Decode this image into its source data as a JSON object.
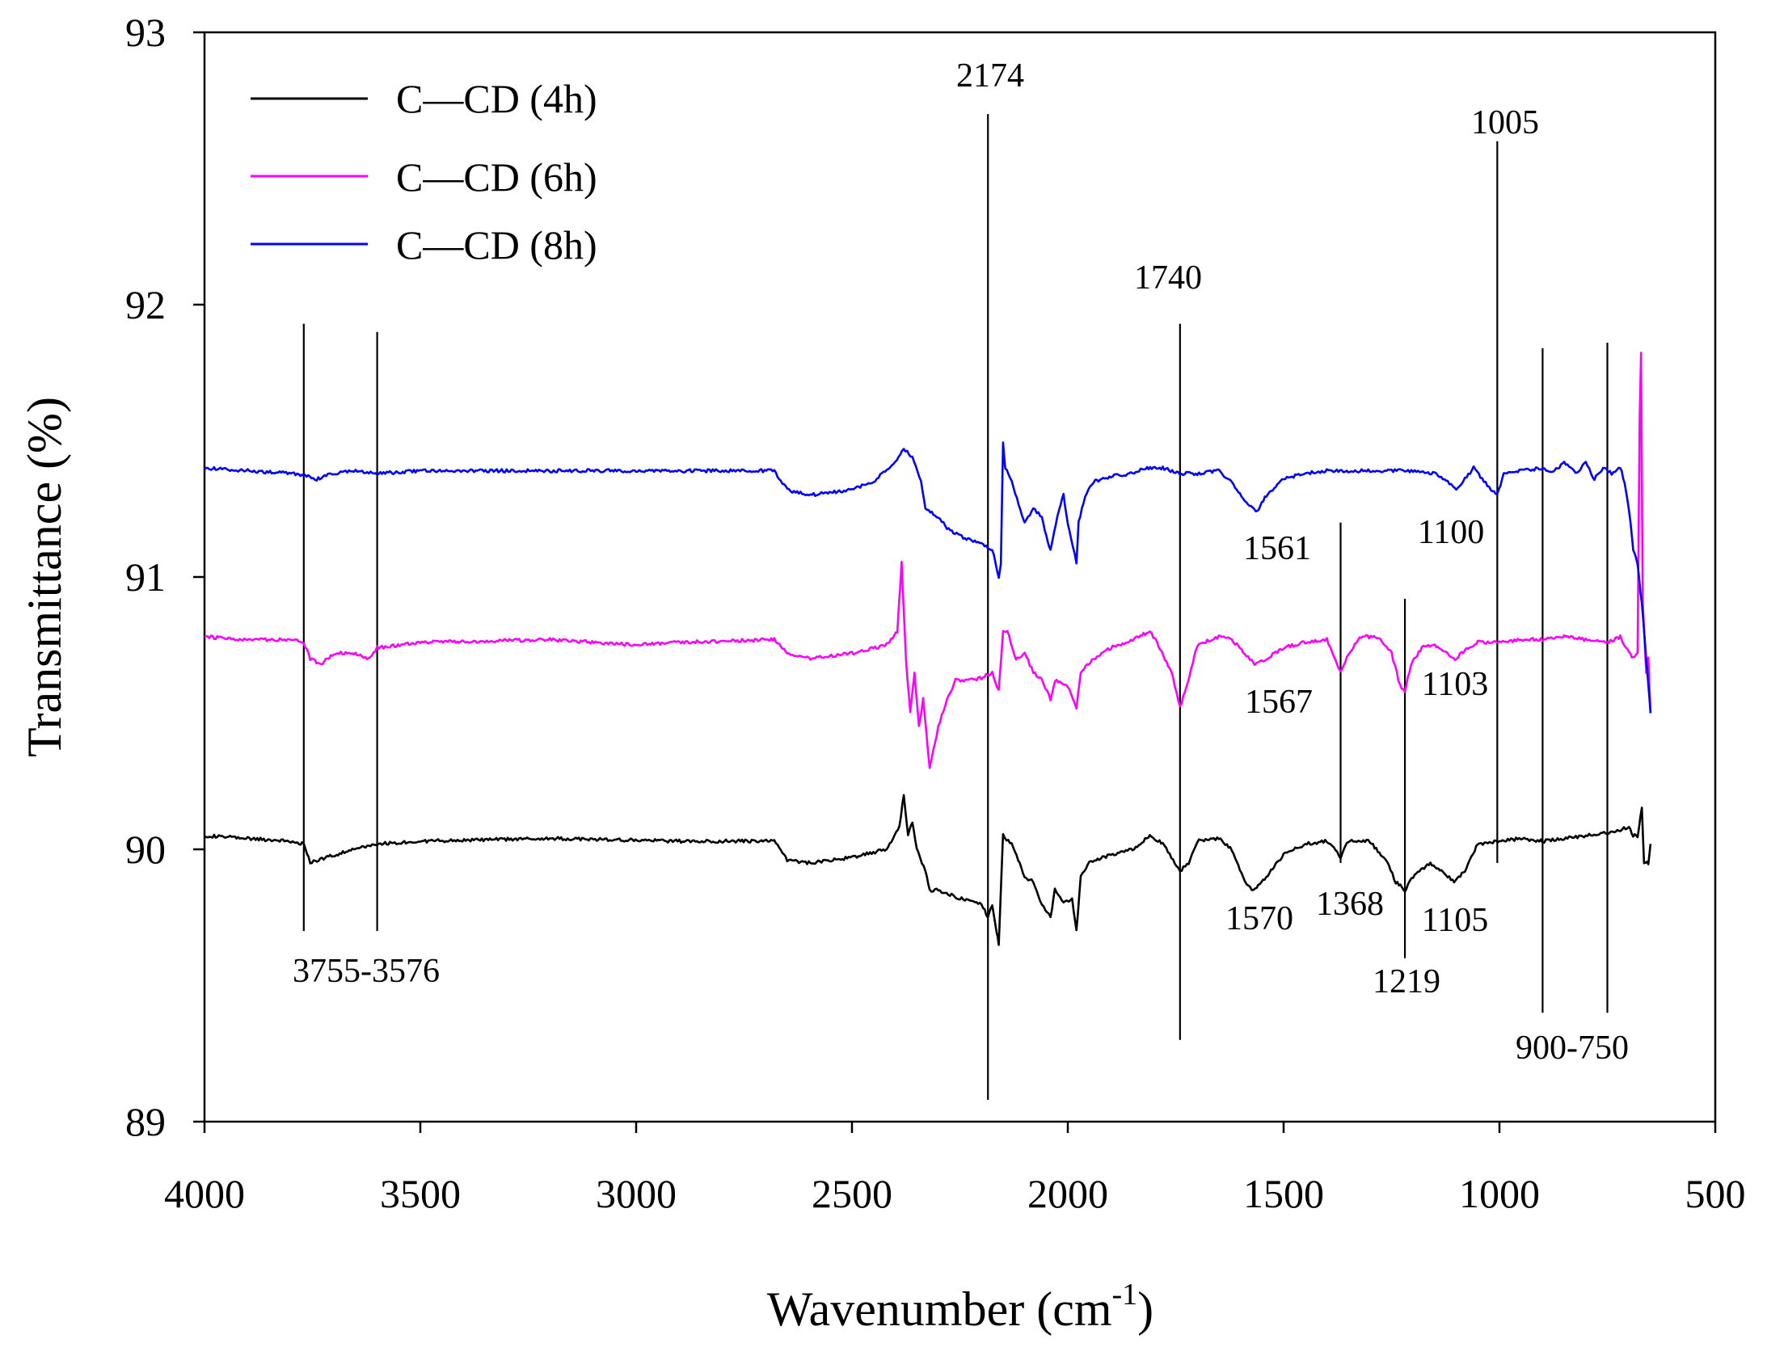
{
  "chart_data": {
    "type": "line",
    "title": "",
    "xlabel": "Wavenumber (cm",
    "xlabel_sup": "-1",
    "xlabel_close": ")",
    "ylabel": "Transmittance (%)",
    "xlim": [
      4000,
      500
    ],
    "ylim": [
      89,
      93
    ],
    "xticks": [
      4000,
      3500,
      3000,
      2500,
      2000,
      1500,
      1000,
      500
    ],
    "yticks": [
      89,
      90,
      91,
      92,
      93
    ],
    "legend_position": "top-left",
    "series": [
      {
        "name": "C—CD (4h)",
        "color": "#000000",
        "points": [
          [
            4000,
            90.05
          ],
          [
            3900,
            90.04
          ],
          [
            3800,
            90.03
          ],
          [
            3770,
            90.02
          ],
          [
            3755,
            89.95
          ],
          [
            3720,
            89.97
          ],
          [
            3650,
            90.0
          ],
          [
            3600,
            90.02
          ],
          [
            3500,
            90.03
          ],
          [
            3200,
            90.04
          ],
          [
            2900,
            90.03
          ],
          [
            2680,
            90.03
          ],
          [
            2650,
            89.96
          ],
          [
            2600,
            89.95
          ],
          [
            2500,
            89.97
          ],
          [
            2420,
            90.0
          ],
          [
            2390,
            90.08
          ],
          [
            2380,
            90.2
          ],
          [
            2370,
            90.05
          ],
          [
            2360,
            90.1
          ],
          [
            2350,
            90.0
          ],
          [
            2330,
            89.92
          ],
          [
            2320,
            89.85
          ],
          [
            2300,
            89.85
          ],
          [
            2250,
            89.82
          ],
          [
            2200,
            89.8
          ],
          [
            2185,
            89.75
          ],
          [
            2175,
            89.8
          ],
          [
            2165,
            89.7
          ],
          [
            2160,
            89.65
          ],
          [
            2150,
            90.05
          ],
          [
            2130,
            90.02
          ],
          [
            2100,
            89.9
          ],
          [
            2080,
            89.88
          ],
          [
            2060,
            89.8
          ],
          [
            2040,
            89.75
          ],
          [
            2030,
            89.85
          ],
          [
            2010,
            89.8
          ],
          [
            1990,
            89.82
          ],
          [
            1980,
            89.7
          ],
          [
            1970,
            89.9
          ],
          [
            1950,
            89.95
          ],
          [
            1900,
            89.98
          ],
          [
            1850,
            90.0
          ],
          [
            1810,
            90.05
          ],
          [
            1780,
            90.02
          ],
          [
            1760,
            89.97
          ],
          [
            1740,
            89.92
          ],
          [
            1720,
            89.95
          ],
          [
            1700,
            90.03
          ],
          [
            1650,
            90.04
          ],
          [
            1620,
            90.0
          ],
          [
            1590,
            89.88
          ],
          [
            1570,
            89.85
          ],
          [
            1540,
            89.9
          ],
          [
            1500,
            89.98
          ],
          [
            1450,
            90.02
          ],
          [
            1400,
            90.03
          ],
          [
            1380,
            90.0
          ],
          [
            1368,
            89.97
          ],
          [
            1350,
            90.03
          ],
          [
            1300,
            90.03
          ],
          [
            1260,
            89.95
          ],
          [
            1240,
            89.88
          ],
          [
            1219,
            89.85
          ],
          [
            1200,
            89.9
          ],
          [
            1160,
            89.95
          ],
          [
            1120,
            89.9
          ],
          [
            1105,
            89.88
          ],
          [
            1080,
            89.92
          ],
          [
            1050,
            90.02
          ],
          [
            1000,
            90.03
          ],
          [
            950,
            90.04
          ],
          [
            900,
            90.03
          ],
          [
            850,
            90.04
          ],
          [
            800,
            90.05
          ],
          [
            750,
            90.06
          ],
          [
            700,
            90.08
          ],
          [
            690,
            90.05
          ],
          [
            680,
            90.05
          ],
          [
            670,
            90.15
          ],
          [
            665,
            89.95
          ],
          [
            655,
            89.95
          ],
          [
            650,
            90.02
          ]
        ]
      },
      {
        "name": "C—CD (6h)",
        "color": "#ff00ff",
        "points": [
          [
            4000,
            90.78
          ],
          [
            3900,
            90.77
          ],
          [
            3800,
            90.77
          ],
          [
            3770,
            90.76
          ],
          [
            3755,
            90.7
          ],
          [
            3730,
            90.68
          ],
          [
            3700,
            90.72
          ],
          [
            3650,
            90.72
          ],
          [
            3620,
            90.7
          ],
          [
            3600,
            90.74
          ],
          [
            3500,
            90.76
          ],
          [
            3200,
            90.77
          ],
          [
            3000,
            90.75
          ],
          [
            2900,
            90.76
          ],
          [
            2680,
            90.77
          ],
          [
            2650,
            90.72
          ],
          [
            2600,
            90.7
          ],
          [
            2500,
            90.72
          ],
          [
            2420,
            90.75
          ],
          [
            2395,
            90.8
          ],
          [
            2385,
            91.05
          ],
          [
            2375,
            90.7
          ],
          [
            2365,
            90.5
          ],
          [
            2355,
            90.65
          ],
          [
            2345,
            90.45
          ],
          [
            2335,
            90.55
          ],
          [
            2320,
            90.3
          ],
          [
            2300,
            90.45
          ],
          [
            2280,
            90.55
          ],
          [
            2260,
            90.62
          ],
          [
            2230,
            90.62
          ],
          [
            2200,
            90.63
          ],
          [
            2175,
            90.65
          ],
          [
            2160,
            90.58
          ],
          [
            2150,
            90.8
          ],
          [
            2140,
            90.8
          ],
          [
            2120,
            90.7
          ],
          [
            2100,
            90.72
          ],
          [
            2080,
            90.65
          ],
          [
            2060,
            90.62
          ],
          [
            2040,
            90.55
          ],
          [
            2030,
            90.62
          ],
          [
            2000,
            90.6
          ],
          [
            1980,
            90.52
          ],
          [
            1970,
            90.65
          ],
          [
            1940,
            90.7
          ],
          [
            1900,
            90.74
          ],
          [
            1850,
            90.77
          ],
          [
            1810,
            90.8
          ],
          [
            1790,
            90.75
          ],
          [
            1760,
            90.65
          ],
          [
            1740,
            90.52
          ],
          [
            1725,
            90.6
          ],
          [
            1700,
            90.75
          ],
          [
            1650,
            90.78
          ],
          [
            1620,
            90.77
          ],
          [
            1590,
            90.72
          ],
          [
            1567,
            90.68
          ],
          [
            1540,
            90.7
          ],
          [
            1500,
            90.74
          ],
          [
            1450,
            90.76
          ],
          [
            1400,
            90.77
          ],
          [
            1380,
            90.7
          ],
          [
            1368,
            90.65
          ],
          [
            1350,
            90.72
          ],
          [
            1320,
            90.78
          ],
          [
            1280,
            90.78
          ],
          [
            1250,
            90.72
          ],
          [
            1230,
            90.6
          ],
          [
            1219,
            90.58
          ],
          [
            1205,
            90.68
          ],
          [
            1180,
            90.74
          ],
          [
            1150,
            90.75
          ],
          [
            1120,
            90.72
          ],
          [
            1103,
            90.7
          ],
          [
            1080,
            90.73
          ],
          [
            1050,
            90.76
          ],
          [
            1000,
            90.76
          ],
          [
            950,
            90.77
          ],
          [
            900,
            90.77
          ],
          [
            850,
            90.78
          ],
          [
            800,
            90.77
          ],
          [
            750,
            90.76
          ],
          [
            720,
            90.78
          ],
          [
            700,
            90.72
          ],
          [
            690,
            90.7
          ],
          [
            680,
            90.72
          ],
          [
            675,
            91.6
          ],
          [
            672,
            91.82
          ],
          [
            668,
            90.9
          ],
          [
            660,
            90.65
          ],
          [
            655,
            90.7
          ],
          [
            650,
            90.5
          ]
        ]
      },
      {
        "name": "C—CD (8h)",
        "color": "#0000ff",
        "points": [
          [
            4000,
            91.4
          ],
          [
            3900,
            91.39
          ],
          [
            3800,
            91.38
          ],
          [
            3760,
            91.37
          ],
          [
            3740,
            91.36
          ],
          [
            3700,
            91.38
          ],
          [
            3650,
            91.39
          ],
          [
            3600,
            91.38
          ],
          [
            3500,
            91.39
          ],
          [
            3300,
            91.39
          ],
          [
            3000,
            91.39
          ],
          [
            2800,
            91.39
          ],
          [
            2680,
            91.39
          ],
          [
            2650,
            91.32
          ],
          [
            2600,
            91.3
          ],
          [
            2500,
            91.32
          ],
          [
            2450,
            91.35
          ],
          [
            2400,
            91.42
          ],
          [
            2380,
            91.47
          ],
          [
            2360,
            91.44
          ],
          [
            2340,
            91.35
          ],
          [
            2330,
            91.25
          ],
          [
            2300,
            91.22
          ],
          [
            2280,
            91.18
          ],
          [
            2250,
            91.15
          ],
          [
            2200,
            91.12
          ],
          [
            2175,
            91.1
          ],
          [
            2160,
            91.0
          ],
          [
            2155,
            91.05
          ],
          [
            2150,
            91.5
          ],
          [
            2145,
            91.4
          ],
          [
            2130,
            91.35
          ],
          [
            2110,
            91.25
          ],
          [
            2100,
            91.2
          ],
          [
            2080,
            91.25
          ],
          [
            2060,
            91.22
          ],
          [
            2050,
            91.15
          ],
          [
            2040,
            91.1
          ],
          [
            2020,
            91.25
          ],
          [
            2010,
            91.3
          ],
          [
            2000,
            91.2
          ],
          [
            1980,
            91.05
          ],
          [
            1975,
            91.2
          ],
          [
            1960,
            91.3
          ],
          [
            1940,
            91.35
          ],
          [
            1900,
            91.37
          ],
          [
            1850,
            91.38
          ],
          [
            1820,
            91.4
          ],
          [
            1780,
            91.4
          ],
          [
            1740,
            91.38
          ],
          [
            1700,
            91.38
          ],
          [
            1650,
            91.39
          ],
          [
            1620,
            91.35
          ],
          [
            1590,
            91.28
          ],
          [
            1561,
            91.24
          ],
          [
            1540,
            91.3
          ],
          [
            1500,
            91.36
          ],
          [
            1450,
            91.38
          ],
          [
            1400,
            91.39
          ],
          [
            1350,
            91.39
          ],
          [
            1300,
            91.39
          ],
          [
            1250,
            91.39
          ],
          [
            1200,
            91.39
          ],
          [
            1150,
            91.38
          ],
          [
            1120,
            91.35
          ],
          [
            1100,
            91.32
          ],
          [
            1080,
            91.36
          ],
          [
            1060,
            91.4
          ],
          [
            1040,
            91.36
          ],
          [
            1020,
            91.32
          ],
          [
            1005,
            91.3
          ],
          [
            990,
            91.38
          ],
          [
            950,
            91.39
          ],
          [
            900,
            91.4
          ],
          [
            880,
            91.38
          ],
          [
            850,
            91.42
          ],
          [
            820,
            91.38
          ],
          [
            800,
            91.42
          ],
          [
            780,
            91.36
          ],
          [
            760,
            91.4
          ],
          [
            740,
            91.38
          ],
          [
            720,
            91.4
          ],
          [
            710,
            91.35
          ],
          [
            700,
            91.25
          ],
          [
            690,
            91.1
          ],
          [
            680,
            91.05
          ],
          [
            670,
            90.9
          ],
          [
            660,
            90.7
          ],
          [
            655,
            90.6
          ],
          [
            650,
            90.5
          ]
        ]
      }
    ],
    "annotations": [
      {
        "label": "3755-3576"
      },
      {
        "label": "2174"
      },
      {
        "label": "1740"
      },
      {
        "label": "1561"
      },
      {
        "label": "1100"
      },
      {
        "label": "1005"
      },
      {
        "label": "1567"
      },
      {
        "label": "1103"
      },
      {
        "label": "1570"
      },
      {
        "label": "1368"
      },
      {
        "label": "1105"
      },
      {
        "label": "1219"
      },
      {
        "label": "900-750"
      }
    ],
    "marker_lines": [
      {
        "x": 3770,
        "y1": 89.7,
        "y2": 91.93
      },
      {
        "x": 3600,
        "y1": 89.7,
        "y2": 91.9
      },
      {
        "x": 2185,
        "y1": 89.08,
        "y2": 92.7
      },
      {
        "x": 1740,
        "y1": 89.3,
        "y2": 91.93
      },
      {
        "x": 1368,
        "y1": 89.95,
        "y2": 91.2
      },
      {
        "x": 1219,
        "y1": 89.6,
        "y2": 90.92
      },
      {
        "x": 1005,
        "y1": 89.95,
        "y2": 92.6
      },
      {
        "x": 900,
        "y1": 89.4,
        "y2": 91.84
      },
      {
        "x": 750,
        "y1": 89.4,
        "y2": 91.86
      }
    ]
  }
}
